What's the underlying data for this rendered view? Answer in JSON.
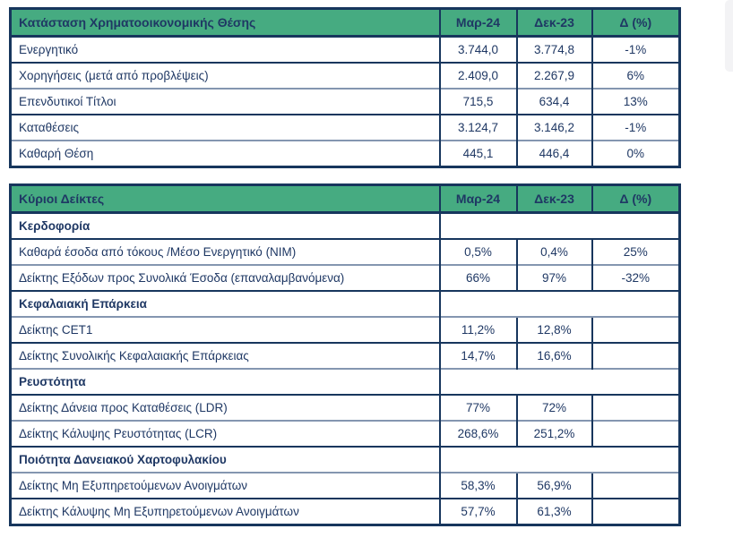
{
  "colors": {
    "header_bg": "#46ab81",
    "text_navy": "#1f3864",
    "border_dark": "#17365d",
    "border_light": "#8496b0",
    "page_bg": "#ffffff"
  },
  "statement_table": {
    "title": "Κατάσταση Χρηματοοικονομικής Θέσης",
    "columns": [
      "Μαρ-24",
      "Δεκ-23",
      "Δ (%)"
    ],
    "rows": [
      {
        "type": "data",
        "label": "Ενεργητικό",
        "mar24": "3.744,0",
        "dec23": "3.774,8",
        "delta": "-1%"
      },
      {
        "type": "data",
        "label": "Χορηγήσεις (μετά από προβλέψεις)",
        "mar24": "2.409,0",
        "dec23": "2.267,9",
        "delta": "6%"
      },
      {
        "type": "data",
        "label": "Επενδυτικοί Τίτλοι",
        "mar24": "715,5",
        "dec23": "634,4",
        "delta": "13%"
      },
      {
        "type": "data",
        "label": "Καταθέσεις",
        "mar24": "3.124,7",
        "dec23": "3.146,2",
        "delta": "-1%"
      },
      {
        "type": "data",
        "label": "Καθαρή Θέση",
        "mar24": "445,1",
        "dec23": "446,4",
        "delta": "0%"
      }
    ]
  },
  "ratios_table": {
    "title": "Κύριοι Δείκτες",
    "columns": [
      "Μαρ-24",
      "Δεκ-23",
      "Δ (%)"
    ],
    "rows": [
      {
        "type": "section",
        "label": "Κερδοφορία"
      },
      {
        "type": "data",
        "label": "Καθαρά έσοδα από τόκους /Μέσο Ενεργητικό (NIM)",
        "mar24": "0,5%",
        "dec23": "0,4%",
        "delta": "25%"
      },
      {
        "type": "data",
        "label": "Δείκτης Εξόδων προς Συνολικά Έσοδα (επαναλαμβανόμενα)",
        "mar24": "66%",
        "dec23": "97%",
        "delta": "-32%"
      },
      {
        "type": "section",
        "label": "Κεφαλαιακή Επάρκεια"
      },
      {
        "type": "data",
        "label": "Δείκτης CET1",
        "mar24": "11,2%",
        "dec23": "12,8%",
        "delta": ""
      },
      {
        "type": "data",
        "label": "Δείκτης Συνολικής Κεφαλαιακής Επάρκειας",
        "mar24": "14,7%",
        "dec23": "16,6%",
        "delta": ""
      },
      {
        "type": "section",
        "label": "Ρευστότητα"
      },
      {
        "type": "data",
        "label": "Δείκτης Δάνεια προς Καταθέσεις (LDR)",
        "mar24": "77%",
        "dec23": "72%",
        "delta": ""
      },
      {
        "type": "data",
        "label": "Δείκτης Κάλυψης Ρευστότητας (LCR)",
        "mar24": "268,6%",
        "dec23": "251,2%",
        "delta": ""
      },
      {
        "type": "section",
        "label": "Ποιότητα Δανειακού Χαρτοφυλακίου"
      },
      {
        "type": "data",
        "label": "Δείκτης Μη Εξυπηρετούμενων Ανοιγμάτων",
        "mar24": "58,3%",
        "dec23": "56,9%",
        "delta": ""
      },
      {
        "type": "data",
        "label": "Δείκτης Κάλυψης Μη Εξυπηρετούμενων Ανοιγμάτων",
        "mar24": "57,7%",
        "dec23": "61,3%",
        "delta": ""
      }
    ]
  }
}
